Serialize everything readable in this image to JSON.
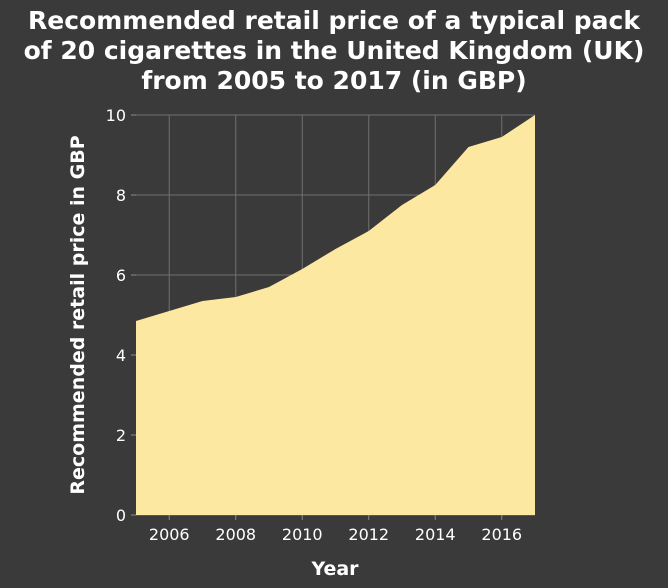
{
  "chart_data": {
    "type": "area",
    "title_lines": [
      "Recommended retail price of a typical pack",
      "of 20 cigarettes in the United Kingdom (UK)",
      "from 2005 to 2017 (in GBP)"
    ],
    "xlabel": "Year",
    "ylabel": "Recommended retail price in GBP",
    "x": [
      2005,
      2006,
      2007,
      2008,
      2009,
      2010,
      2011,
      2012,
      2013,
      2014,
      2015,
      2016,
      2017
    ],
    "series": [
      {
        "values": [
          4.85,
          5.1,
          5.35,
          5.45,
          5.7,
          6.15,
          6.65,
          7.1,
          7.75,
          8.25,
          9.2,
          9.45,
          10.0
        ]
      }
    ],
    "xlim": [
      2005,
      2017
    ],
    "ylim": [
      0,
      10
    ],
    "xticks": [
      2006,
      2008,
      2010,
      2012,
      2014,
      2016
    ],
    "yticks": [
      0,
      2,
      4,
      6,
      8,
      10
    ],
    "grid": true,
    "colors": {
      "fill": "#fde8a2",
      "background": "#3a3a3a",
      "grid": "#707070",
      "text": "#ffffff"
    }
  }
}
